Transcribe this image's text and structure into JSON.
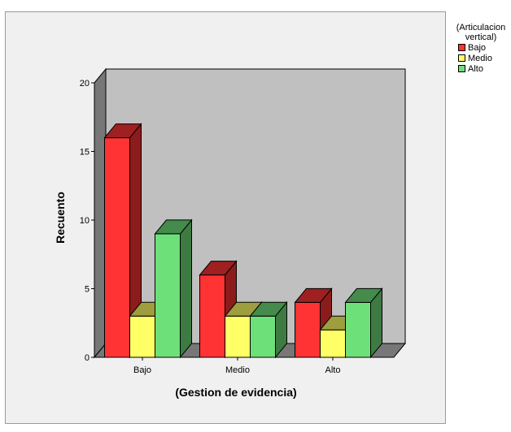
{
  "chart_data": {
    "type": "bar",
    "ylabel": "Recuento",
    "xlabel": "(Gestion de evidencia)",
    "categories": [
      "Bajo",
      "Medio",
      "Alto"
    ],
    "yticks": [
      0,
      5,
      10,
      15,
      20
    ],
    "ylim": [
      0,
      20
    ],
    "legend_title": "(Articulacion vertical)",
    "legend_position": "right",
    "series": [
      {
        "name": "Bajo",
        "values": [
          16,
          6,
          4
        ],
        "color": "#ff3333"
      },
      {
        "name": "Medio",
        "values": [
          3,
          3,
          2
        ],
        "color": "#ffff66"
      },
      {
        "name": "Alto",
        "values": [
          9,
          3,
          4
        ],
        "color": "#6ee07a"
      }
    ]
  }
}
